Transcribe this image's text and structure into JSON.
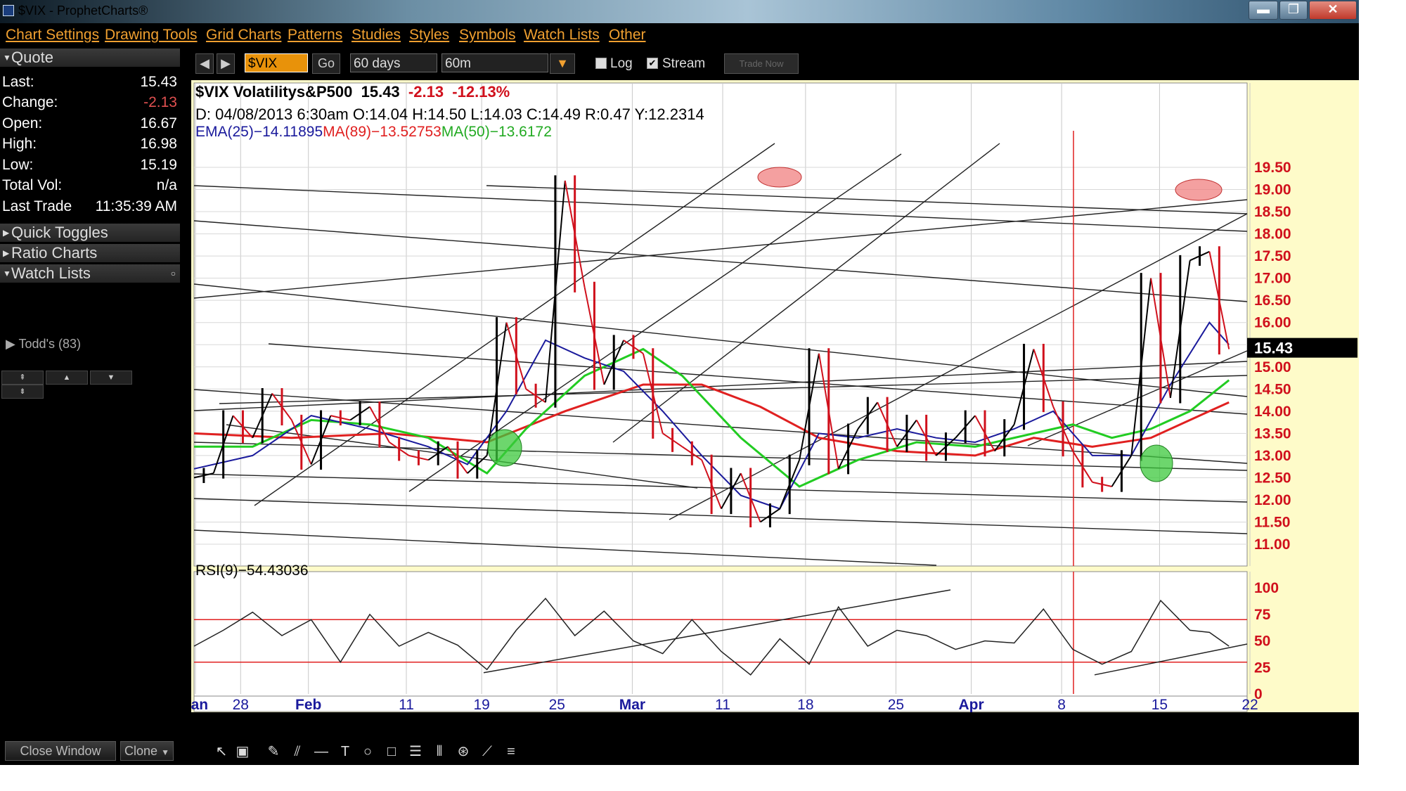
{
  "window": {
    "title": "$VIX - ProphetCharts®",
    "min_label": "▬",
    "max_label": "❐",
    "close_label": "✕"
  },
  "menu": [
    "Chart Settings",
    "Drawing Tools",
    "Grid Charts",
    "Patterns",
    "Studies",
    "Styles",
    "Symbols",
    "Watch Lists",
    "Other"
  ],
  "left_panel": {
    "quote_title": "Quote",
    "quote_rows": [
      {
        "label": "Last:",
        "value": "15.43",
        "neg": false
      },
      {
        "label": "Change:",
        "value": "-2.13",
        "neg": true
      },
      {
        "label": "Open:",
        "value": "16.67",
        "neg": false
      },
      {
        "label": "High:",
        "value": "16.98",
        "neg": false
      },
      {
        "label": "Low:",
        "value": "15.19",
        "neg": false
      },
      {
        "label": "Total Vol:",
        "value": "n/a",
        "neg": false
      },
      {
        "label": "Last Trade",
        "value": "11:35:39 AM",
        "neg": false
      }
    ],
    "sections": [
      "Quick Toggles",
      "Ratio Charts",
      "Watch Lists"
    ],
    "watch_item": "Todd's (83)",
    "close_window": "Close Window",
    "clone": "Clone"
  },
  "toolbar": {
    "symbol": "$VIX",
    "go": "Go",
    "range": "60 days",
    "interval": "60m",
    "log_label": "Log",
    "log_checked": false,
    "stream_label": "Stream",
    "stream_checked": true,
    "trade_now": "Trade Now"
  },
  "chart_header": {
    "symbol": "$VIX Volatilitys&P500",
    "last": "15.43",
    "change": "-2.13",
    "pct": "-12.13%",
    "bar_info": "D: 04/08/2013    6:30am O:14.04  H:14.50  L:14.03  C:14.49  R:0.47  Y:12.2314",
    "ema_label": "EMA(25)−14.11895",
    "ma89_label": "MA(89)−13.52753",
    "ma50_label": "MA(50)−13.6172",
    "rsi_label": "RSI(9)−54.43036",
    "price_tag": "15.43"
  },
  "colors": {
    "price_up": "#000000",
    "price_down": "#d0101c",
    "ema": "#1a1a9c",
    "ma89": "#e02020",
    "ma50": "#22cc22",
    "bg": "#ffffff",
    "frame": "#fefbc9"
  },
  "chart_data": {
    "type": "line",
    "title": "$VIX Volatilitys&P500",
    "y_ticks": [
      "19.50",
      "19.00",
      "18.50",
      "18.00",
      "17.50",
      "17.00",
      "16.50",
      "16.00",
      "15.50",
      "15.00",
      "14.50",
      "14.00",
      "13.50",
      "13.00",
      "12.50",
      "12.00",
      "11.50",
      "11.00"
    ],
    "ylim": [
      11.0,
      19.5
    ],
    "x_ticks": [
      {
        "label": "Jan",
        "bold": true
      },
      {
        "label": "28",
        "bold": false
      },
      {
        "label": "Feb",
        "bold": true
      },
      {
        "label": "11",
        "bold": false
      },
      {
        "label": "19",
        "bold": false
      },
      {
        "label": "25",
        "bold": false
      },
      {
        "label": "Mar",
        "bold": true
      },
      {
        "label": "11",
        "bold": false
      },
      {
        "label": "18",
        "bold": false
      },
      {
        "label": "25",
        "bold": false
      },
      {
        "label": "Apr",
        "bold": true
      },
      {
        "label": "8",
        "bold": false
      },
      {
        "label": "15",
        "bold": false
      },
      {
        "label": "22",
        "bold": false
      }
    ],
    "series": [
      {
        "name": "$VIX",
        "kind": "price",
        "points": [
          [
            0,
            12.5
          ],
          [
            2,
            12.6
          ],
          [
            4,
            13.9
          ],
          [
            6,
            13.4
          ],
          [
            8,
            14.4
          ],
          [
            10,
            13.8
          ],
          [
            12,
            12.8
          ],
          [
            14,
            13.9
          ],
          [
            16,
            13.8
          ],
          [
            18,
            14.1
          ],
          [
            20,
            13.3
          ],
          [
            22,
            13.0
          ],
          [
            24,
            12.9
          ],
          [
            26,
            13.2
          ],
          [
            28,
            12.6
          ],
          [
            30,
            13.0
          ],
          [
            32,
            16.0
          ],
          [
            34,
            14.5
          ],
          [
            36,
            14.2
          ],
          [
            38,
            19.2
          ],
          [
            40,
            16.8
          ],
          [
            42,
            14.6
          ],
          [
            44,
            15.6
          ],
          [
            46,
            15.3
          ],
          [
            48,
            13.5
          ],
          [
            50,
            13.2
          ],
          [
            52,
            12.9
          ],
          [
            54,
            11.8
          ],
          [
            56,
            12.6
          ],
          [
            58,
            11.5
          ],
          [
            60,
            11.8
          ],
          [
            62,
            12.9
          ],
          [
            64,
            15.3
          ],
          [
            66,
            12.7
          ],
          [
            68,
            13.6
          ],
          [
            70,
            14.2
          ],
          [
            72,
            13.2
          ],
          [
            74,
            13.8
          ],
          [
            76,
            13.0
          ],
          [
            78,
            13.4
          ],
          [
            80,
            13.9
          ],
          [
            82,
            13.1
          ],
          [
            84,
            13.7
          ],
          [
            86,
            15.4
          ],
          [
            88,
            14.1
          ],
          [
            90,
            13.1
          ],
          [
            92,
            12.4
          ],
          [
            94,
            12.3
          ],
          [
            96,
            13.0
          ],
          [
            98,
            17.0
          ],
          [
            100,
            14.3
          ],
          [
            102,
            17.4
          ],
          [
            104,
            17.6
          ],
          [
            106,
            15.4
          ]
        ]
      },
      {
        "name": "EMA(25)",
        "kind": "ema",
        "points": [
          [
            0,
            12.7
          ],
          [
            6,
            13.0
          ],
          [
            12,
            13.9
          ],
          [
            18,
            13.6
          ],
          [
            24,
            13.2
          ],
          [
            28,
            12.8
          ],
          [
            32,
            14.0
          ],
          [
            36,
            15.6
          ],
          [
            40,
            15.2
          ],
          [
            44,
            14.9
          ],
          [
            48,
            14.0
          ],
          [
            52,
            13.0
          ],
          [
            56,
            12.1
          ],
          [
            60,
            11.8
          ],
          [
            64,
            13.5
          ],
          [
            68,
            13.4
          ],
          [
            72,
            13.6
          ],
          [
            76,
            13.4
          ],
          [
            80,
            13.3
          ],
          [
            84,
            13.6
          ],
          [
            88,
            14.0
          ],
          [
            92,
            13.0
          ],
          [
            96,
            13.0
          ],
          [
            100,
            14.6
          ],
          [
            104,
            16.0
          ],
          [
            106,
            15.5
          ]
        ]
      },
      {
        "name": "MA(89)",
        "kind": "ma89",
        "points": [
          [
            0,
            13.5
          ],
          [
            10,
            13.4
          ],
          [
            20,
            13.5
          ],
          [
            30,
            13.3
          ],
          [
            38,
            14.0
          ],
          [
            46,
            14.6
          ],
          [
            52,
            14.6
          ],
          [
            58,
            14.1
          ],
          [
            64,
            13.4
          ],
          [
            72,
            13.1
          ],
          [
            80,
            13.0
          ],
          [
            86,
            13.4
          ],
          [
            92,
            13.2
          ],
          [
            98,
            13.4
          ],
          [
            104,
            14.0
          ],
          [
            106,
            14.2
          ]
        ]
      },
      {
        "name": "MA(50)",
        "kind": "ma50",
        "points": [
          [
            0,
            13.2
          ],
          [
            6,
            13.2
          ],
          [
            12,
            13.8
          ],
          [
            18,
            13.7
          ],
          [
            24,
            13.4
          ],
          [
            30,
            12.6
          ],
          [
            34,
            13.6
          ],
          [
            40,
            14.8
          ],
          [
            46,
            15.4
          ],
          [
            50,
            14.8
          ],
          [
            56,
            13.4
          ],
          [
            62,
            12.3
          ],
          [
            68,
            12.9
          ],
          [
            74,
            13.3
          ],
          [
            80,
            13.2
          ],
          [
            86,
            13.5
          ],
          [
            90,
            13.7
          ],
          [
            94,
            13.4
          ],
          [
            98,
            13.6
          ],
          [
            102,
            14.0
          ],
          [
            106,
            14.7
          ]
        ]
      }
    ],
    "rsi": {
      "name": "RSI(9)",
      "ylim": [
        0,
        100
      ],
      "y_ticks": [
        "100",
        "75",
        "50",
        "25",
        "0"
      ],
      "overbought": 70,
      "oversold": 30,
      "points": [
        [
          0,
          45
        ],
        [
          3,
          60
        ],
        [
          6,
          77
        ],
        [
          9,
          55
        ],
        [
          12,
          70
        ],
        [
          15,
          30
        ],
        [
          18,
          75
        ],
        [
          21,
          45
        ],
        [
          24,
          58
        ],
        [
          27,
          46
        ],
        [
          30,
          23
        ],
        [
          33,
          60
        ],
        [
          36,
          90
        ],
        [
          39,
          55
        ],
        [
          42,
          78
        ],
        [
          45,
          50
        ],
        [
          48,
          38
        ],
        [
          51,
          70
        ],
        [
          54,
          40
        ],
        [
          57,
          18
        ],
        [
          60,
          52
        ],
        [
          63,
          28
        ],
        [
          66,
          82
        ],
        [
          69,
          45
        ],
        [
          72,
          60
        ],
        [
          75,
          55
        ],
        [
          78,
          42
        ],
        [
          81,
          50
        ],
        [
          84,
          48
        ],
        [
          87,
          80
        ],
        [
          90,
          42
        ],
        [
          93,
          28
        ],
        [
          96,
          40
        ],
        [
          99,
          88
        ],
        [
          102,
          60
        ],
        [
          104,
          58
        ],
        [
          106,
          45
        ]
      ]
    }
  }
}
